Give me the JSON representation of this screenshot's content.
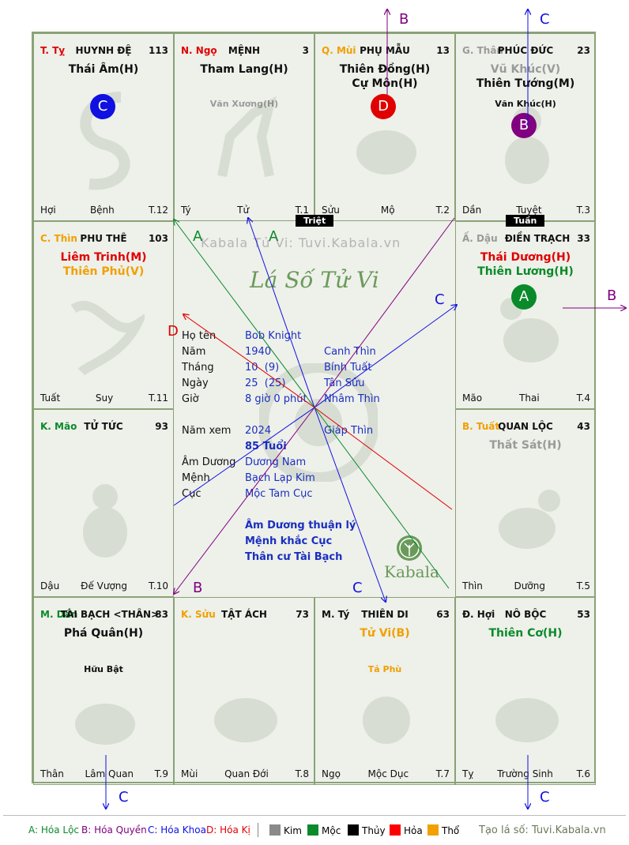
{
  "cells": [
    {
      "id": "ty",
      "can": "T. Tỵ",
      "can_color": "#e00000",
      "palace": "HUYNH ĐỆ",
      "num": "113",
      "stars": [
        {
          "t": "Thái Âm(H)",
          "c": "#111"
        }
      ],
      "minor": [],
      "bl": "Hợi",
      "bm": "Bệnh",
      "br": "T.12"
    },
    {
      "id": "ngo",
      "can": "N. Ngọ",
      "can_color": "#e00000",
      "palace": "MỆNH",
      "num": "3",
      "stars": [
        {
          "t": "Tham Lang(H)",
          "c": "#111"
        }
      ],
      "minor": [
        {
          "t": "Văn Xương(H)",
          "c": "#9a9a9a"
        }
      ],
      "bl": "Tý",
      "bm": "Tử",
      "br": "T.1"
    },
    {
      "id": "mui",
      "can": "Q. Mùi",
      "can_color": "#f0a000",
      "palace": "PHỤ MẪU",
      "num": "13",
      "stars": [
        {
          "t": "Thiên Đồng(H)",
          "c": "#111"
        },
        {
          "t": "Cự Môn(H)",
          "c": "#111"
        }
      ],
      "minor": [],
      "bl": "Sửu",
      "bm": "Mộ",
      "br": "T.2"
    },
    {
      "id": "than",
      "can": "G. Thân",
      "can_color": "#9a9a9a",
      "palace": "PHÚC ĐỨC",
      "num": "23",
      "stars": [
        {
          "t": "Vũ Khúc(V)",
          "c": "#9a9a9a"
        },
        {
          "t": "Thiên Tướng(M)",
          "c": "#111"
        }
      ],
      "minor": [
        {
          "t": "Văn Khúc(H)",
          "c": "#111"
        }
      ],
      "bl": "Dần",
      "bm": "Tuyệt",
      "br": "T.3"
    },
    {
      "id": "thin",
      "can": "C. Thìn",
      "can_color": "#f0a000",
      "palace": "PHU THÊ",
      "num": "103",
      "stars": [
        {
          "t": "Liêm Trinh(M)",
          "c": "#e00000"
        },
        {
          "t": "Thiên Phủ(V)",
          "c": "#f0a000"
        }
      ],
      "minor": [],
      "bl": "Tuất",
      "bm": "Suy",
      "br": "T.11"
    },
    {
      "id": "dau",
      "can": "Ấ. Dậu",
      "can_color": "#9a9a9a",
      "palace": "ĐIỀN TRẠCH",
      "num": "33",
      "stars": [
        {
          "t": "Thái Dương(H)",
          "c": "#e00000"
        },
        {
          "t": "Thiên Lương(H)",
          "c": "#0a8a2a"
        }
      ],
      "minor": [],
      "bl": "Mão",
      "bm": "Thai",
      "br": "T.4"
    },
    {
      "id": "mao",
      "can": "K. Mão",
      "can_color": "#0a8a2a",
      "palace": "TỬ TỨC",
      "num": "93",
      "stars": [],
      "minor": [],
      "bl": "Dậu",
      "bm": "Đế Vượng",
      "br": "T.10"
    },
    {
      "id": "tuat",
      "can": "B. Tuất",
      "can_color": "#f0a000",
      "palace": "QUAN LỘC",
      "num": "43",
      "stars": [
        {
          "t": "Thất Sát(H)",
          "c": "#9a9a9a"
        }
      ],
      "minor": [],
      "bl": "Thìn",
      "bm": "Dưỡng",
      "br": "T.5"
    },
    {
      "id": "dan",
      "can": "M. Dần",
      "can_color": "#0a8a2a",
      "palace": "TÀI BẠCH <THÂN>",
      "num": "83",
      "stars": [
        {
          "t": "Phá Quân(H)",
          "c": "#111"
        }
      ],
      "minor": [
        {
          "t": "Hữu Bật",
          "c": "#111"
        }
      ],
      "bl": "Thân",
      "bm": "Lâm Quan",
      "br": "T.9"
    },
    {
      "id": "suu",
      "can": "K. Sửu",
      "can_color": "#f0a000",
      "palace": "TẬT ÁCH",
      "num": "73",
      "stars": [],
      "minor": [],
      "bl": "Mùi",
      "bm": "Quan Đới",
      "br": "T.8"
    },
    {
      "id": "tyw",
      "can": "M. Tý",
      "can_color": "#111",
      "palace": "THIÊN DI",
      "num": "63",
      "stars": [
        {
          "t": "Tử Vi(B)",
          "c": "#f0a000"
        }
      ],
      "minor": [
        {
          "t": "Tả Phù",
          "c": "#f0a000"
        }
      ],
      "bl": "Ngọ",
      "bm": "Mộc Dục",
      "br": "T.7"
    },
    {
      "id": "hoi",
      "can": "Đ. Hợi",
      "can_color": "#111",
      "palace": "NÔ BỘC",
      "num": "53",
      "stars": [
        {
          "t": "Thiên Cơ(H)",
          "c": "#0a8a2a"
        }
      ],
      "minor": [],
      "bl": "Tỵ",
      "bm": "Trường Sinh",
      "br": "T.6"
    }
  ],
  "badges": [
    {
      "label": "C",
      "color": "#1010e0"
    },
    {
      "label": "D",
      "color": "#e00000"
    },
    {
      "label": "B",
      "color": "#800080"
    },
    {
      "label": "A",
      "color": "#0a8a2a"
    }
  ],
  "tags": {
    "triet": "Triệt",
    "tuan": "Tuần"
  },
  "center": {
    "watermark": "Kabala Tử Vi: Tuvi.Kabala.vn",
    "title": "Lá Số Tử Vi",
    "rows": [
      {
        "k": "Họ tên",
        "v": "Bob Knight",
        "v2": ""
      },
      {
        "k": "Năm",
        "v": "1940",
        "v2": "Canh Thìn"
      },
      {
        "k": "Tháng",
        "v": "10  (9)",
        "v2": "Bính Tuất"
      },
      {
        "k": "Ngày",
        "v": "25  (25)",
        "v2": "Tân Sửu"
      },
      {
        "k": "Giờ",
        "v": "8 giờ 0 phút",
        "v2": "Nhâm Thìn"
      }
    ],
    "nam_xem_k": "Năm xem",
    "nam_xem_v": "2024",
    "nam_xem_v2": "Giáp Thìn",
    "tuoi": "85 Tuổi",
    "rows2": [
      {
        "k": "Âm Dương",
        "v": "Dương Nam"
      },
      {
        "k": "Mệnh",
        "v": "Bạch Lạp Kim"
      },
      {
        "k": "Cục",
        "v": "Mộc Tam Cục"
      }
    ],
    "notes": [
      "Âm Dương thuận lý",
      "Mệnh khắc Cục",
      "Thân cư Tài Bạch"
    ],
    "logo": "Kabala"
  },
  "arrow_labels": {
    "a": "A",
    "b": "B",
    "c": "C",
    "d": "D"
  },
  "legend": {
    "hoa_loc": "A: Hóa Lộc",
    "hoa_quyen": "B: Hóa Quyền",
    "hoa_khoa": "C: Hóa Khoa",
    "hoa_ki": "D: Hóa Kị",
    "kim": "Kim",
    "moc": "Mộc",
    "thuy": "Thủy",
    "hoa": "Hỏa",
    "tho": "Thổ",
    "site": "Tạo lá số: Tuvi.Kabala.vn",
    "colors": {
      "kim": "#8a8a8a",
      "moc": "#0a8a2a",
      "thuy": "#000000",
      "hoa": "#ff0000",
      "tho": "#f0a000"
    }
  }
}
